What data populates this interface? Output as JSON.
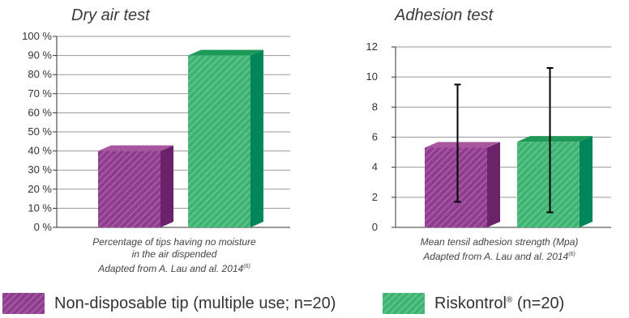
{
  "chart_data": [
    {
      "type": "bar",
      "title": "Dry air test",
      "categories": [
        "Non-disposable tip (multiple use; n=20)",
        "Riskontrol® (n=20)"
      ],
      "values": [
        40,
        90
      ],
      "ylim": [
        0,
        100
      ],
      "yticks": [
        0,
        10,
        20,
        30,
        40,
        50,
        60,
        70,
        80,
        90,
        100
      ],
      "ytick_labels": [
        "0 %",
        "10 %",
        "20 %",
        "30 %",
        "40 %",
        "50 %",
        "60 %",
        "70 %",
        "80 %",
        "90 %",
        "100 %"
      ],
      "grid": true,
      "caption": [
        "Percentage of tips having no moisture",
        "in the air dispended",
        "Adapted from A. Lau and al. 2014"
      ],
      "caption_sup": "(6)"
    },
    {
      "type": "bar",
      "title": "Adhesion test",
      "categories": [
        "Non-disposable tip (multiple use; n=20)",
        "Riskontrol® (n=20)"
      ],
      "values": [
        5.3,
        5.7
      ],
      "error_low": [
        1.7,
        1.0
      ],
      "error_high": [
        9.5,
        10.6
      ],
      "ylim": [
        0,
        12
      ],
      "yticks": [
        0,
        2,
        4,
        6,
        8,
        10,
        12
      ],
      "ytick_labels": [
        "0",
        "2",
        "4",
        "6",
        "8",
        "10",
        "12"
      ],
      "grid": true,
      "caption": [
        "Mean tensil adhesion strength (Mpa)",
        "Adapted from A. Lau and al. 2014"
      ],
      "caption_sup": "(6)"
    }
  ],
  "legend": {
    "items": [
      {
        "label": "Non-disposable tip (multiple use; n=20)",
        "sup": ""
      },
      {
        "label": "Riskontrol",
        "sup": "®",
        "suffix": "(n=20)"
      }
    ]
  },
  "colors": {
    "purple_front": "#8e3c8e",
    "purple_top": "#a8579f",
    "purple_side": "#6a226a",
    "green_front": "#3fb271",
    "green_top": "#1f9a56",
    "green_side": "#00865a",
    "grid": "#9a9a9a",
    "axis": "#333333"
  }
}
